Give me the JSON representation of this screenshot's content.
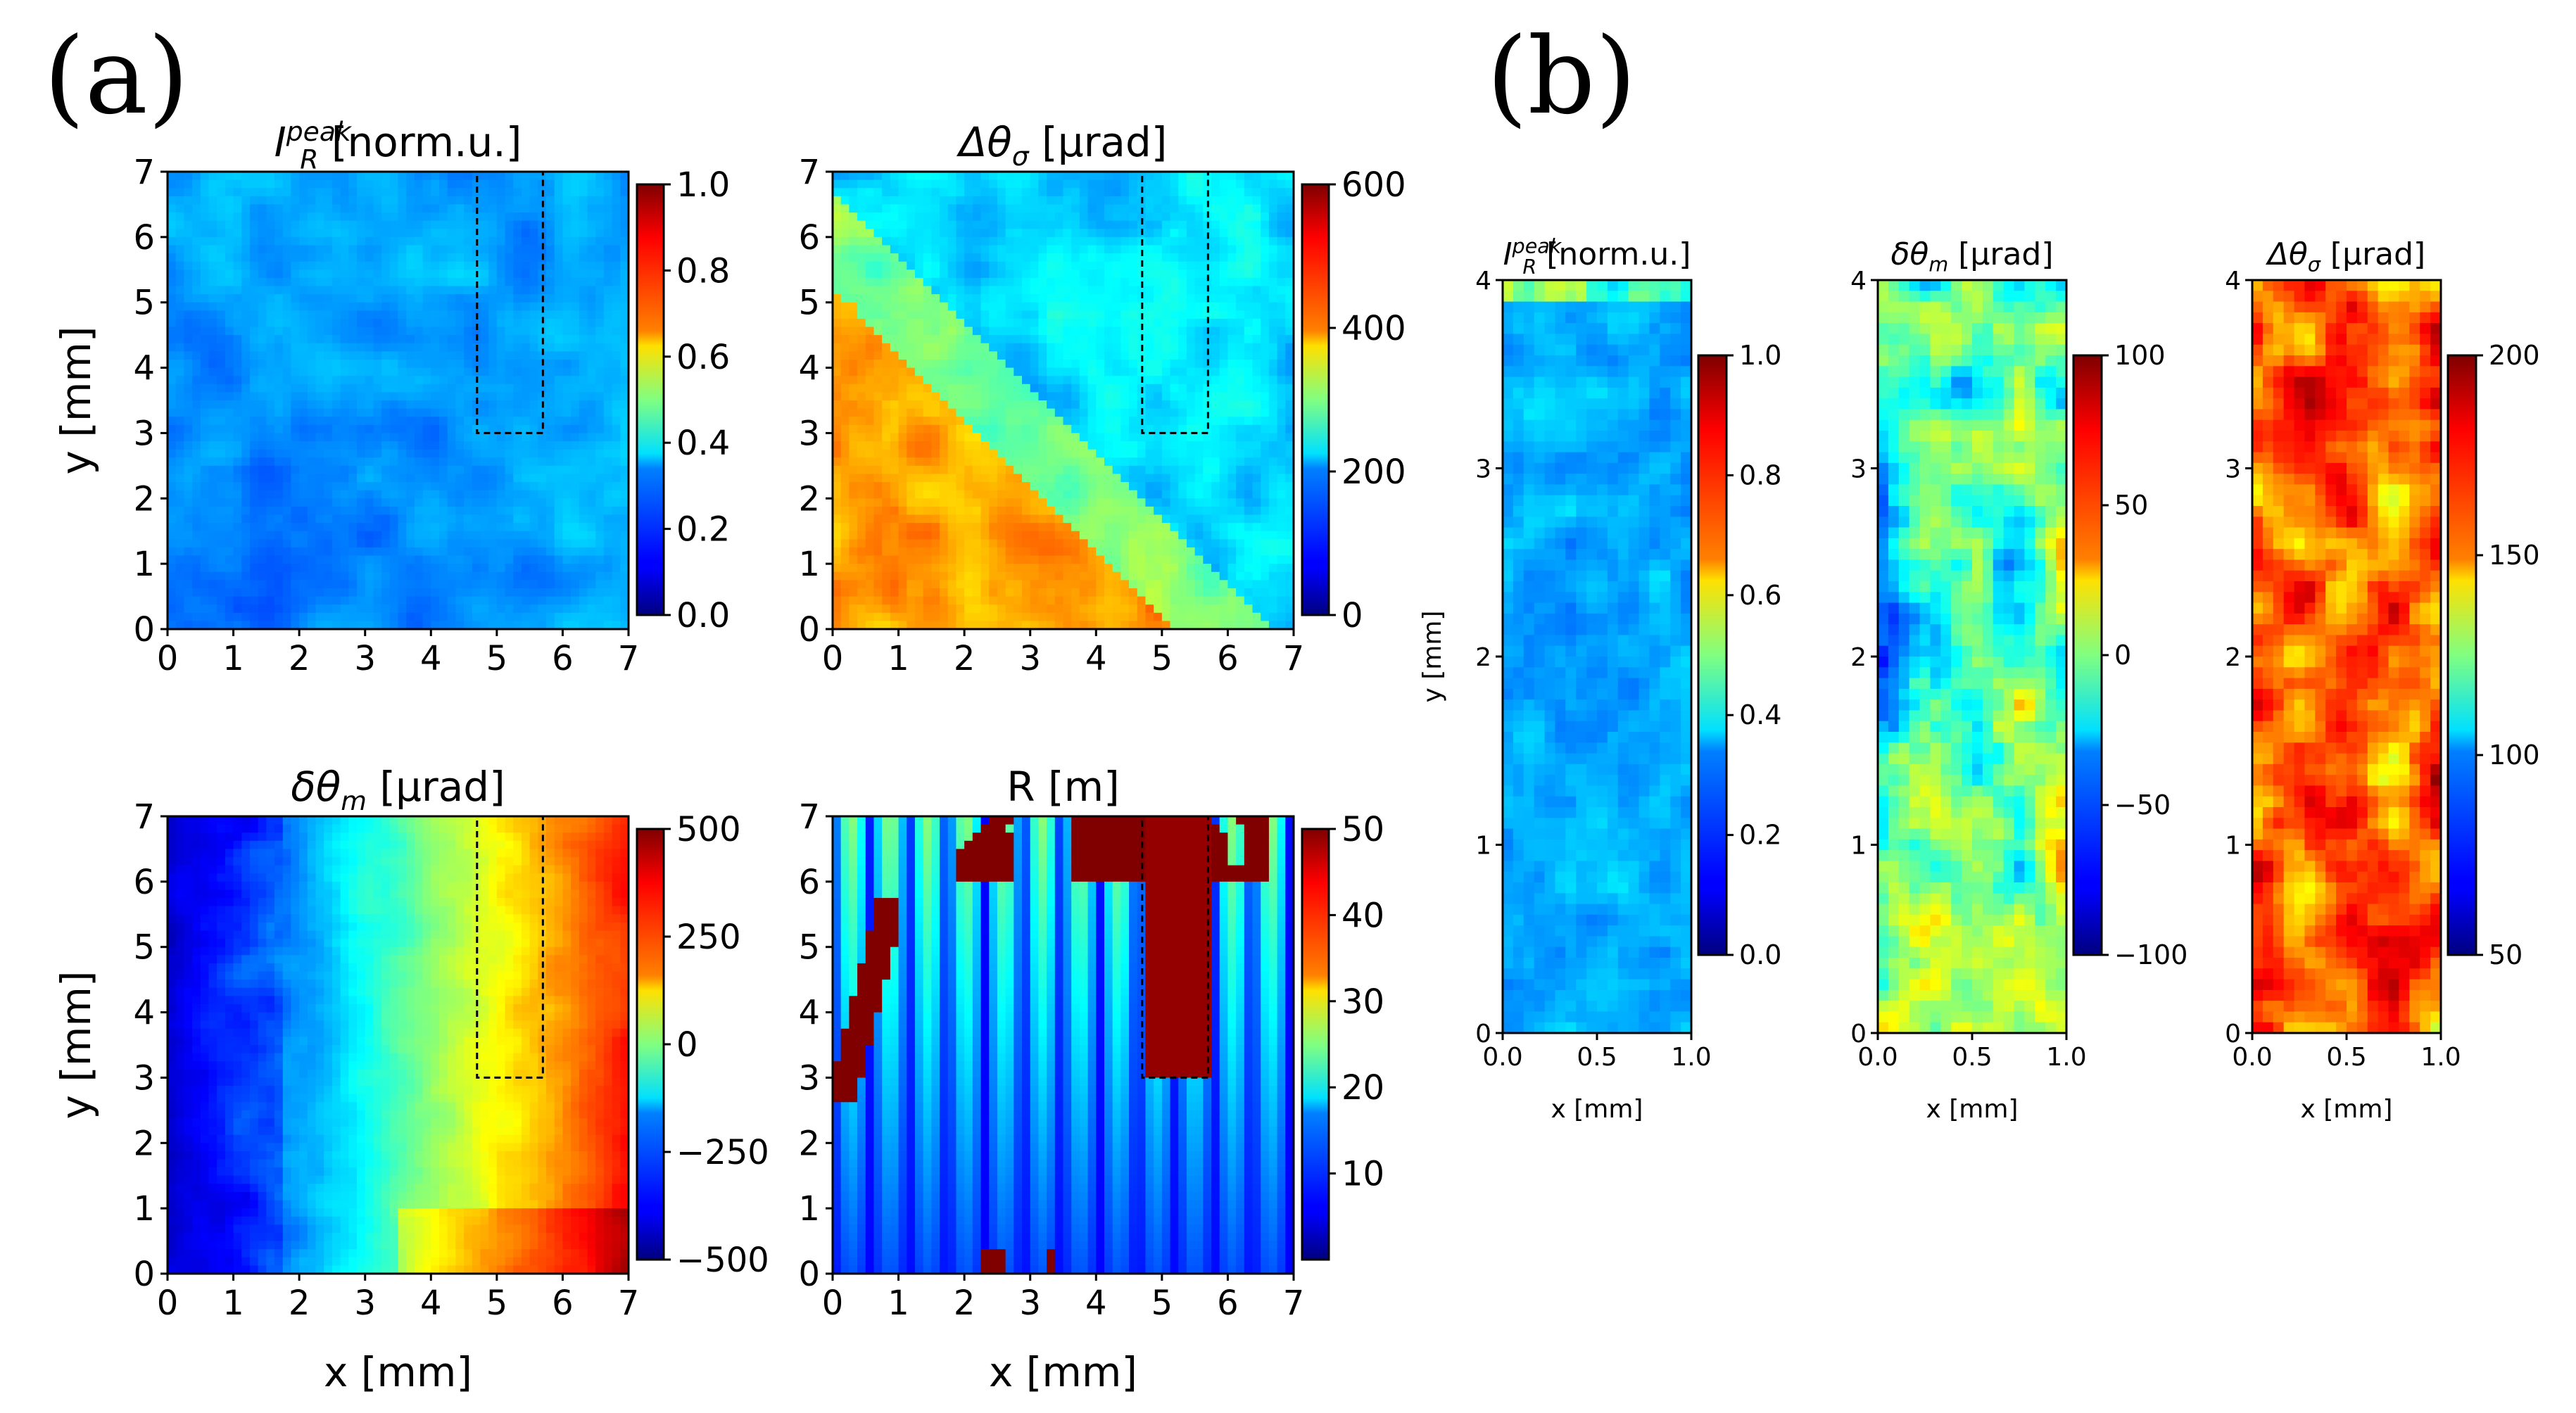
{
  "panel_labels": [
    "(a)",
    "(b)"
  ],
  "chart_data": [
    {
      "type": "heatmap",
      "id": "a1",
      "panel": "(a)",
      "title": "I_R^peak [norm.u.]",
      "title_main": "I",
      "title_sub": "R",
      "title_sup": "peak",
      "title_rest": " [norm.u.]",
      "ylabel": "y [mm]",
      "xlabel": "",
      "xlim": [
        0,
        7
      ],
      "ylim": [
        0,
        7
      ],
      "xticks": [
        "0",
        "1",
        "2",
        "3",
        "4",
        "5",
        "6",
        "7"
      ],
      "yticks": [
        "0",
        "1",
        "2",
        "3",
        "4",
        "5",
        "6",
        "7"
      ],
      "colorbar": {
        "range": [
          0.0,
          1.0
        ],
        "ticks": [
          0.0,
          0.2,
          0.4,
          0.6,
          0.8,
          1.0
        ],
        "labels": [
          "0.0",
          "0.2",
          "0.4",
          "0.6",
          "0.8",
          "1.0"
        ]
      },
      "roi": {
        "x": [
          4.7,
          5.7
        ],
        "y": [
          3.0,
          7.0
        ]
      },
      "pattern": "uniform_low",
      "base": 0.3
    },
    {
      "type": "heatmap",
      "id": "a2",
      "panel": "(a)",
      "title": "Δθσ [μrad]",
      "title_main": "Δθ",
      "title_sub": "σ",
      "title_sup": "",
      "title_rest": " [μrad]",
      "ylabel": "",
      "xlabel": "",
      "xlim": [
        0,
        7
      ],
      "ylim": [
        0,
        7
      ],
      "xticks": [
        "0",
        "1",
        "2",
        "3",
        "4",
        "5",
        "6",
        "7"
      ],
      "yticks": [
        "0",
        "1",
        "2",
        "3",
        "4",
        "5",
        "6",
        "7"
      ],
      "colorbar": {
        "range": [
          0,
          600
        ],
        "ticks": [
          0,
          200,
          400,
          600
        ],
        "labels": [
          "0",
          "200",
          "400",
          "600"
        ]
      },
      "roi": {
        "x": [
          4.7,
          5.7
        ],
        "y": [
          3.0,
          7.0
        ]
      },
      "pattern": "diagonal_high_lower_left",
      "base": 220
    },
    {
      "type": "heatmap",
      "id": "a3",
      "panel": "(a)",
      "title": "δθm [μrad]",
      "title_main": "δθ",
      "title_sub": "m",
      "title_sup": "",
      "title_rest": " [μrad]",
      "ylabel": "y [mm]",
      "xlabel": "x [mm]",
      "xlim": [
        0,
        7
      ],
      "ylim": [
        0,
        7
      ],
      "xticks": [
        "0",
        "1",
        "2",
        "3",
        "4",
        "5",
        "6",
        "7"
      ],
      "yticks": [
        "0",
        "1",
        "2",
        "3",
        "4",
        "5",
        "6",
        "7"
      ],
      "colorbar": {
        "range": [
          -500,
          500
        ],
        "ticks": [
          -500,
          -250,
          0,
          250,
          500
        ],
        "labels": [
          "−500",
          "−250",
          "0",
          "250",
          "500"
        ]
      },
      "roi": {
        "x": [
          4.7,
          5.7
        ],
        "y": [
          3.0,
          7.0
        ]
      },
      "pattern": "gradient_left_to_right",
      "base": 0
    },
    {
      "type": "heatmap",
      "id": "a4",
      "panel": "(a)",
      "title": "R [m]",
      "title_main": "R [m]",
      "title_sub": "",
      "title_sup": "",
      "title_rest": "",
      "ylabel": "",
      "xlabel": "x [mm]",
      "xlim": [
        0,
        7
      ],
      "ylim": [
        0,
        7
      ],
      "xticks": [
        "0",
        "1",
        "2",
        "3",
        "4",
        "5",
        "6",
        "7"
      ],
      "yticks": [
        "0",
        "1",
        "2",
        "3",
        "4",
        "5",
        "6",
        "7"
      ],
      "colorbar": {
        "range": [
          0,
          50
        ],
        "ticks": [
          10,
          20,
          30,
          40,
          50
        ],
        "labels": [
          "10",
          "20",
          "30",
          "40",
          "50"
        ]
      },
      "roi": {
        "x": [
          4.7,
          5.7
        ],
        "y": [
          3.0,
          7.0
        ]
      },
      "pattern": "stripes_with_saturation",
      "base": 15
    },
    {
      "type": "heatmap",
      "id": "b1",
      "panel": "(b)",
      "title": "I_R^peak [norm.u.]",
      "title_main": "I",
      "title_sub": "R",
      "title_sup": "peak",
      "title_rest": " [norm.u.]",
      "ylabel": "y [mm]",
      "xlabel": "x [mm]",
      "xlim": [
        0.0,
        1.0
      ],
      "ylim": [
        0,
        4
      ],
      "xticks": [
        "0.0",
        "0.5",
        "1.0"
      ],
      "yticks": [
        "0",
        "1",
        "2",
        "3",
        "4"
      ],
      "colorbar": {
        "range": [
          0.0,
          1.0
        ],
        "ticks": [
          0.0,
          0.2,
          0.4,
          0.6,
          0.8,
          1.0
        ],
        "labels": [
          "0.0",
          "0.2",
          "0.4",
          "0.6",
          "0.8",
          "1.0"
        ]
      },
      "pattern": "uniform_low_strip",
      "base": 0.3
    },
    {
      "type": "heatmap",
      "id": "b2",
      "panel": "(b)",
      "title": "δθm [μrad]",
      "title_main": "δθ",
      "title_sub": "m",
      "title_sup": "",
      "title_rest": " [μrad]",
      "ylabel": "",
      "xlabel": "x [mm]",
      "xlim": [
        0.0,
        1.0
      ],
      "ylim": [
        0,
        4
      ],
      "xticks": [
        "0.0",
        "0.5",
        "1.0"
      ],
      "yticks": [
        "0",
        "1",
        "2",
        "3",
        "4"
      ],
      "colorbar": {
        "range": [
          -100,
          100
        ],
        "ticks": [
          -100,
          -50,
          0,
          50,
          100
        ],
        "labels": [
          "−100",
          "−50",
          "0",
          "50",
          "100"
        ]
      },
      "pattern": "blobs_mixed",
      "base": 0
    },
    {
      "type": "heatmap",
      "id": "b3",
      "panel": "(b)",
      "title": "Δθσ [μrad]",
      "title_main": "Δθ",
      "title_sub": "σ",
      "title_sup": "",
      "title_rest": " [μrad]",
      "ylabel": "",
      "xlabel": "x [mm]",
      "xlim": [
        0.0,
        1.0
      ],
      "ylim": [
        0,
        4
      ],
      "xticks": [
        "0.0",
        "0.5",
        "1.0"
      ],
      "yticks": [
        "0",
        "1",
        "2",
        "3",
        "4"
      ],
      "colorbar": {
        "range": [
          50,
          200
        ],
        "ticks": [
          50,
          100,
          150,
          200
        ],
        "labels": [
          "50",
          "100",
          "150",
          "200"
        ]
      },
      "pattern": "blobs_high",
      "base": 160
    }
  ]
}
